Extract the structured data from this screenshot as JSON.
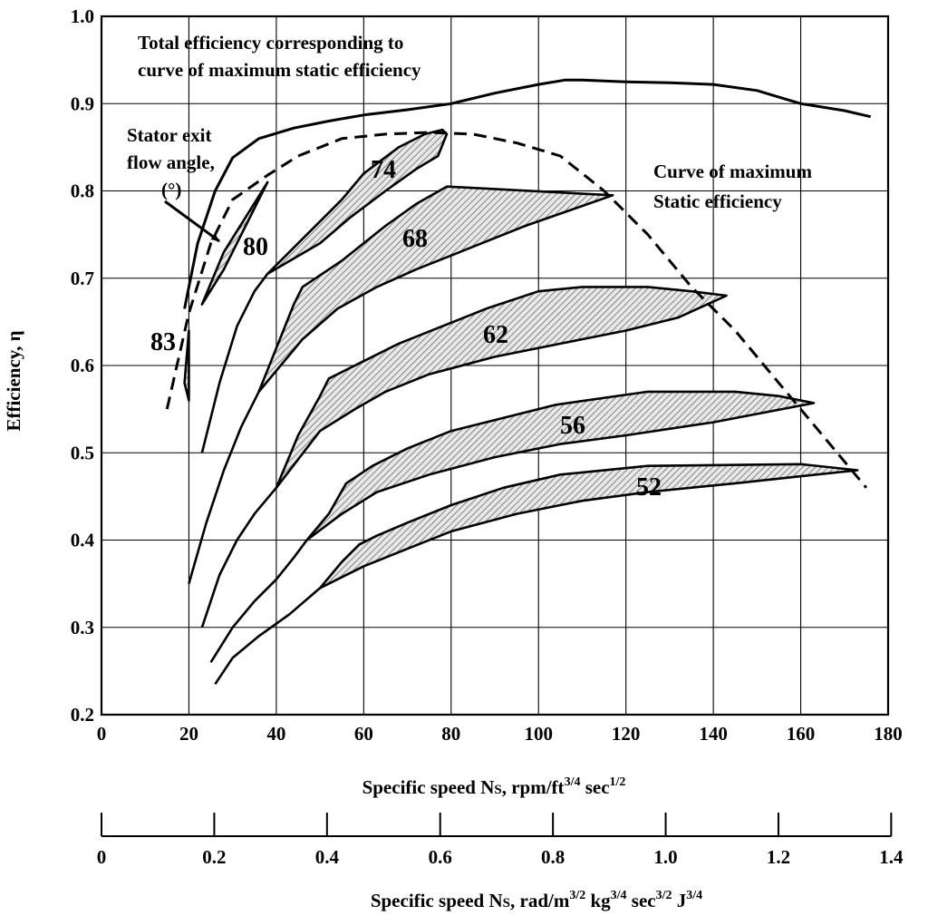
{
  "chart_data": {
    "type": "line",
    "title": "",
    "xlabel": "Specific speed Ns, rpm/ft3/4 sec1/2",
    "xlabel_parts": {
      "pre": "Specific speed N",
      "sub": "S",
      "mid1": ", rpm/ft",
      "sup1": "3/4",
      "mid2": " sec",
      "sup2": "1/2"
    },
    "x2label": "Specific speed Ns, rad/m3/2 kg3/4 sec3/2 J3/4",
    "x2label_parts": {
      "pre": "Specific speed N",
      "sub": "S",
      "mid1": ", rad/m",
      "sup1": "3/2",
      "mid2": " kg",
      "sup2": "3/4",
      "mid3": " sec",
      "sup3": "3/2",
      "mid4": " J",
      "sup4": "3/4"
    },
    "ylabel": "Efficiency, η",
    "xlim": [
      0,
      180
    ],
    "ylim": [
      0.2,
      1.0
    ],
    "x_ticks": [
      "0",
      "20",
      "40",
      "60",
      "80",
      "100",
      "120",
      "140",
      "160",
      "180"
    ],
    "y_ticks": [
      "0.2",
      "0.3",
      "0.4",
      "0.5",
      "0.6",
      "0.7",
      "0.8",
      "0.9",
      "1.0"
    ],
    "x2_ticks": [
      {
        "label": "0",
        "value": 0
      },
      {
        "label": "0.2",
        "value": 25.8
      },
      {
        "label": "0.4",
        "value": 51.6
      },
      {
        "label": "0.6",
        "value": 77.5
      },
      {
        "label": "0.8",
        "value": 103.3
      },
      {
        "label": "1.0",
        "value": 129.1
      },
      {
        "label": "1.2",
        "value": 154.9
      },
      {
        "label": "1.4",
        "value": 180.7
      }
    ],
    "grid": true,
    "series": [
      {
        "name": "Total efficiency corresponding to curve of maximum static efficiency",
        "style": "solid",
        "x": [
          19,
          22,
          26,
          30,
          36,
          44,
          52,
          60,
          70,
          80,
          90,
          100,
          106,
          110,
          120,
          130,
          140,
          150,
          160,
          170,
          176
        ],
        "y": [
          0.665,
          0.74,
          0.8,
          0.838,
          0.86,
          0.872,
          0.88,
          0.887,
          0.893,
          0.9,
          0.912,
          0.922,
          0.927,
          0.927,
          0.925,
          0.924,
          0.922,
          0.915,
          0.9,
          0.892,
          0.885
        ]
      },
      {
        "name": "Curve of maximum Static efficiency",
        "style": "dashed",
        "x": [
          15,
          20,
          25,
          30,
          38,
          45,
          55,
          65,
          75,
          85,
          95,
          105,
          115,
          125,
          135,
          145,
          155,
          165,
          175
        ],
        "y": [
          0.55,
          0.66,
          0.74,
          0.79,
          0.818,
          0.84,
          0.86,
          0.865,
          0.867,
          0.865,
          0.855,
          0.84,
          0.8,
          0.75,
          0.69,
          0.64,
          0.58,
          0.52,
          0.46
        ]
      }
    ],
    "bands": [
      {
        "label": "83",
        "upper": {
          "x": [
            19,
            20
          ],
          "y": [
            0.58,
            0.64
          ]
        },
        "lower": {
          "x": [
            19,
            20
          ],
          "y": [
            0.58,
            0.56
          ]
        },
        "lead_in": {
          "x": [],
          "y": []
        }
      },
      {
        "label": "80",
        "upper": {
          "x": [
            23,
            28,
            33,
            38
          ],
          "y": [
            0.67,
            0.73,
            0.77,
            0.81
          ]
        },
        "lower": {
          "x": [
            23,
            28,
            33,
            38
          ],
          "y": [
            0.67,
            0.71,
            0.76,
            0.81
          ]
        },
        "lead_in": {
          "x": [],
          "y": []
        }
      },
      {
        "label": "74",
        "upper": {
          "x": [
            38,
            47,
            55,
            60,
            68,
            74,
            78,
            79
          ],
          "y": [
            0.705,
            0.75,
            0.79,
            0.82,
            0.85,
            0.865,
            0.87,
            0.865
          ]
        },
        "lower": {
          "x": [
            38,
            50,
            57,
            65,
            72,
            77,
            79
          ],
          "y": [
            0.705,
            0.74,
            0.77,
            0.8,
            0.825,
            0.84,
            0.865
          ]
        },
        "lead_in": {
          "x": [
            23,
            27,
            31,
            35,
            38
          ],
          "y": [
            0.5,
            0.58,
            0.645,
            0.685,
            0.705
          ]
        }
      },
      {
        "label": "68",
        "upper": {
          "x": [
            36,
            40,
            44,
            46,
            55,
            65,
            72,
            79,
            117
          ],
          "y": [
            0.57,
            0.62,
            0.67,
            0.69,
            0.72,
            0.76,
            0.785,
            0.805,
            0.795
          ]
        },
        "lower": {
          "x": [
            36,
            46,
            54,
            63,
            72,
            82,
            97,
            117
          ],
          "y": [
            0.57,
            0.63,
            0.665,
            0.69,
            0.71,
            0.73,
            0.76,
            0.795
          ]
        },
        "lead_in": {
          "x": [
            20,
            24,
            28,
            32,
            36
          ],
          "y": [
            0.35,
            0.42,
            0.48,
            0.53,
            0.57
          ]
        }
      },
      {
        "label": "62",
        "upper": {
          "x": [
            40,
            45,
            50,
            52,
            60,
            68,
            78,
            88,
            100,
            110,
            125,
            135,
            143
          ],
          "y": [
            0.46,
            0.52,
            0.565,
            0.585,
            0.605,
            0.625,
            0.645,
            0.665,
            0.685,
            0.69,
            0.69,
            0.685,
            0.68
          ]
        },
        "lower": {
          "x": [
            40,
            50,
            58,
            65,
            75,
            90,
            105,
            120,
            132,
            143
          ],
          "y": [
            0.46,
            0.525,
            0.55,
            0.57,
            0.59,
            0.61,
            0.625,
            0.64,
            0.655,
            0.68
          ]
        },
        "lead_in": {
          "x": [
            23,
            27,
            31,
            35,
            40
          ],
          "y": [
            0.3,
            0.36,
            0.4,
            0.43,
            0.46
          ]
        }
      },
      {
        "label": "56",
        "upper": {
          "x": [
            47,
            52,
            56,
            62,
            70,
            80,
            92,
            104,
            125,
            145,
            155,
            163
          ],
          "y": [
            0.4,
            0.43,
            0.465,
            0.485,
            0.505,
            0.525,
            0.54,
            0.555,
            0.57,
            0.57,
            0.565,
            0.557
          ]
        },
        "lower": {
          "x": [
            47,
            55,
            63,
            75,
            90,
            105,
            120,
            140,
            163
          ],
          "y": [
            0.4,
            0.43,
            0.455,
            0.475,
            0.495,
            0.51,
            0.52,
            0.535,
            0.557
          ]
        },
        "lead_in": {
          "x": [
            25,
            30,
            35,
            40,
            44,
            47
          ],
          "y": [
            0.26,
            0.3,
            0.33,
            0.355,
            0.38,
            0.4
          ]
        }
      },
      {
        "label": "52",
        "upper": {
          "x": [
            50,
            55,
            59,
            63,
            70,
            80,
            92,
            105,
            125,
            160,
            173
          ],
          "y": [
            0.345,
            0.375,
            0.395,
            0.405,
            0.42,
            0.44,
            0.46,
            0.475,
            0.485,
            0.487,
            0.48
          ]
        },
        "lower": {
          "x": [
            50,
            60,
            70,
            80,
            95,
            110,
            125,
            145,
            173
          ],
          "y": [
            0.345,
            0.37,
            0.39,
            0.41,
            0.43,
            0.445,
            0.455,
            0.465,
            0.48
          ]
        },
        "lead_in": {
          "x": [
            26,
            30,
            36,
            43,
            50
          ],
          "y": [
            0.235,
            0.265,
            0.29,
            0.315,
            0.345
          ]
        }
      }
    ],
    "annotations": {
      "total_eff_line1": "Total efficiency corresponding to",
      "total_eff_line2": "curve of maximum static efficiency",
      "stator_line1": "Stator exit",
      "stator_line2": "flow angle,",
      "stator_line3": "(°)",
      "max_static_line1": "Curve of maximum",
      "max_static_line2": "Static efficiency"
    }
  }
}
